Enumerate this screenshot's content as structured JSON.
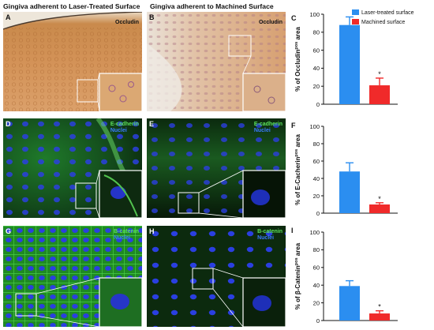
{
  "header": {
    "left_title": "Gingiva adherent to Laser-Treated Surface",
    "right_title": "Gingiva adherent to Machined Surface"
  },
  "panels": [
    {
      "label": "A",
      "stain": "",
      "stain2": ""
    },
    {
      "label": "B",
      "stain": "Occludin",
      "stain2": ""
    },
    {
      "label": "D",
      "stain": "E-cadherin",
      "stain2": "Nuclei"
    },
    {
      "label": "E",
      "stain": "E-cadherin",
      "stain2": "Nuclei"
    },
    {
      "label": "G",
      "stain": "B-catenin",
      "stain2": "Nuclei"
    },
    {
      "label": "H",
      "stain": "B-catenin",
      "stain2": "Nuclei"
    }
  ],
  "panel_a_stain": "Occludin",
  "colors": {
    "laser": "#2b8ef0",
    "machined": "#f02a2a"
  },
  "chart_data": [
    {
      "letter": "C",
      "type": "bar",
      "categories": [
        "Laser-treated surface",
        "Machined surface"
      ],
      "values": [
        88,
        21
      ],
      "errors": [
        9,
        8
      ],
      "ylim": [
        0,
        100
      ],
      "yticks": [
        "0",
        "20",
        "40",
        "60",
        "80",
        "100"
      ],
      "ylabel_main": "% of Occludin",
      "ylabel_sup": "pos",
      "ylabel_tail": " area",
      "significance": "*",
      "legend": [
        "Laser-treated surface",
        "Machined surface"
      ]
    },
    {
      "letter": "F",
      "type": "bar",
      "categories": [
        "Laser-treated surface",
        "Machined surface"
      ],
      "values": [
        48,
        10
      ],
      "errors": [
        10,
        2
      ],
      "ylim": [
        0,
        100
      ],
      "yticks": [
        "0",
        "20",
        "40",
        "60",
        "80",
        "100"
      ],
      "ylabel_main": "% of E-Cacherin",
      "ylabel_sup": "pos",
      "ylabel_tail": " area",
      "significance": "*"
    },
    {
      "letter": "I",
      "type": "bar",
      "categories": [
        "Laser-treated surface",
        "Machined surface"
      ],
      "values": [
        39,
        8
      ],
      "errors": [
        6,
        3
      ],
      "ylim": [
        0,
        100
      ],
      "yticks": [
        "0",
        "20",
        "40",
        "60",
        "80",
        "100"
      ],
      "ylabel_main": "% of β-Catenin",
      "ylabel_sup": "pos",
      "ylabel_tail": " area",
      "significance": "*"
    }
  ]
}
